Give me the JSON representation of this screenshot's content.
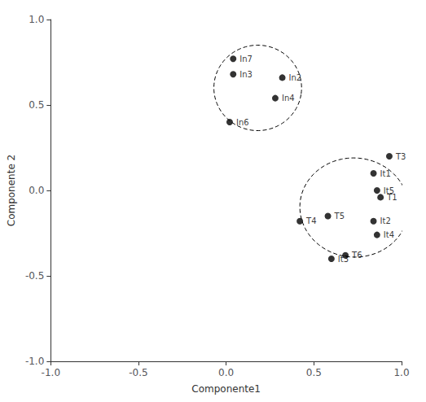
{
  "chart_data": {
    "type": "scatter",
    "x": [
      0.04,
      0.04,
      0.32,
      0.28,
      0.02,
      0.93,
      0.84,
      0.86,
      0.88,
      0.58,
      0.84,
      0.86,
      0.42,
      0.6,
      0.68
    ],
    "values": [
      0.77,
      0.68,
      0.66,
      0.54,
      0.4,
      0.2,
      0.1,
      0.0,
      -0.04,
      -0.15,
      -0.18,
      -0.26,
      -0.18,
      -0.4,
      -0.38
    ],
    "labels": [
      "In7",
      "In3",
      "In2",
      "In4",
      "In6",
      "T3",
      "It1",
      "It5",
      "T1",
      "T5",
      "It2",
      "It4",
      "T4",
      "It3",
      "T6"
    ],
    "color": "black",
    "marker": "circle",
    "ellipses": [
      {
        "cx": 0.18,
        "cy": 0.6,
        "width": 0.5,
        "height": 0.5,
        "angle": -8
      },
      {
        "cx": 0.73,
        "cy": -0.1,
        "width": 0.62,
        "height": 0.58,
        "angle": -5
      }
    ],
    "ellipse_line_style": "dashed",
    "xlabel": "Componente1",
    "ylabel": "Componente 2",
    "xlim": [
      -1.0,
      1.0
    ],
    "ylim": [
      -1.0,
      1.0
    ],
    "xticks": [
      {
        "value": -1.0,
        "label": "-1.0"
      },
      -0.5,
      {
        "value": 0.0,
        "label": "0.0"
      },
      0.5,
      {
        "value": 1.0,
        "label": "1.0"
      }
    ],
    "yticks": [
      {
        "value": -1.0,
        "label": "-1.0"
      },
      -0.5,
      {
        "value": 0.0,
        "label": "0.0"
      },
      0.5,
      {
        "value": 1.0,
        "label": "1.0"
      }
    ],
    "grid": false
  }
}
